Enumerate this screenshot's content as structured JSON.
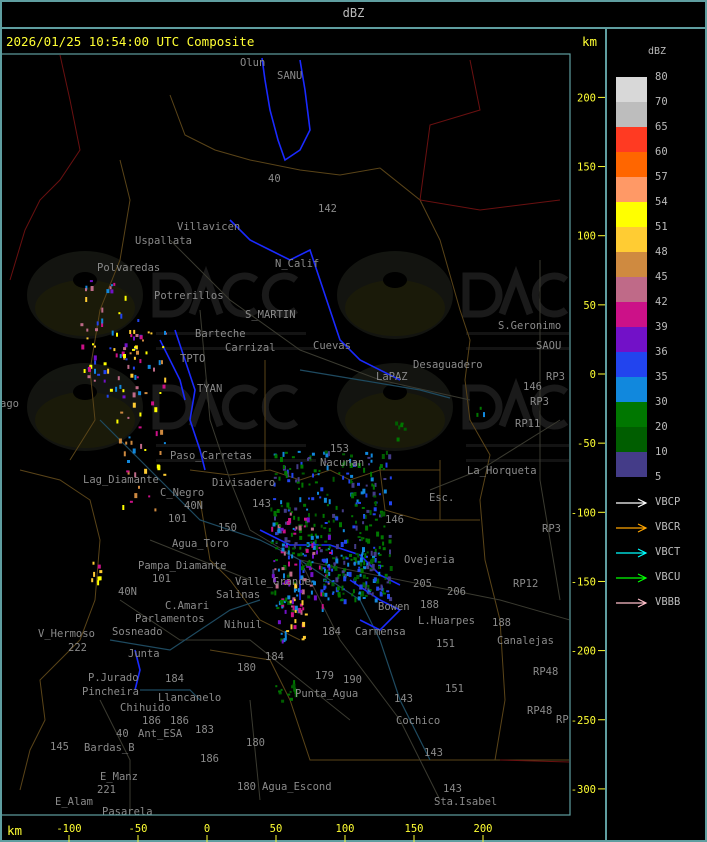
{
  "header": {
    "title": "dBZ"
  },
  "plot": {
    "title": "2026/01/25 10:54:00 UTC Composite",
    "y_unit": "km",
    "x_unit": "km",
    "x_ticks": [
      "-100",
      "-50",
      "0",
      "50",
      "100",
      "150",
      "200"
    ],
    "y_ticks": [
      "200",
      "150",
      "100",
      "50",
      "0",
      "-50",
      "-100",
      "-150",
      "-200",
      "-250",
      "-300"
    ]
  },
  "watermark": {
    "logo": "DACC",
    "line1": "Dirección de Agricultura",
    "line2": "y Contingencias Climáticas",
    "url": "http://www.contingencias.mendoza.gov.ar"
  },
  "places": [
    "Olun",
    "SANU",
    "40",
    "142",
    "Villavicen",
    "Uspallata",
    "Polvaredas",
    "N_Calif",
    "Potrerillos",
    "S_MARTIN",
    "Barteche",
    "Carrizal",
    "Cuevas",
    "TPTO",
    "TYAN",
    "Desaguadero",
    "LaPAZ",
    "S.Geronimo",
    "SAOU",
    "146",
    "RP3",
    "RP3",
    "RP11",
    "ago",
    "Paso_Carretas",
    "Lag_Diamante",
    "C_Negro",
    "Divisadero",
    "153",
    "Nacunan",
    "La_Horqueta",
    "Esc.",
    "143",
    "146",
    "101",
    "150",
    "40N",
    "Agua_Toro",
    "Pampa_Diamante",
    "101",
    "40N",
    "Salinas",
    "Valle_Grande",
    "C.Amari",
    "Parlamentos",
    "Sosneado",
    "Nihuil",
    "Ovejeria",
    "205",
    "206",
    "L.Huarpes",
    "188",
    "Carmensa",
    "Bowen",
    "184",
    "151",
    "188",
    "Canalejas",
    "RP12",
    "RP3",
    "V_Hermoso",
    "222",
    "Junta",
    "P.Jurado",
    "Pincheira",
    "184",
    "180",
    "184",
    "179",
    "190",
    "Punta_Agua",
    "Llancanelo",
    "Chihuido",
    "186",
    "186",
    "Ant_ESA",
    "183",
    "40",
    "145",
    "Bardas_B",
    "180",
    "143",
    "151",
    "RP48",
    "RP48",
    "RP",
    "Cochico",
    "186",
    "143",
    "E_Manz",
    "221",
    "E_Alam",
    "Pasarela",
    "180",
    "Agua_Escond",
    "143",
    "Sta.Isabel"
  ],
  "legend": {
    "unit": "dBZ",
    "labels": [
      "80",
      "70",
      "65",
      "60",
      "57",
      "54",
      "51",
      "48",
      "45",
      "42",
      "39",
      "36",
      "35",
      "30",
      "20",
      "10",
      "5"
    ],
    "colors": [
      "#d8d8d8",
      "#bdbdbd",
      "#ff3a22",
      "#ff6600",
      "#ff9966",
      "#ffff00",
      "#ffcc33",
      "#cf8a40",
      "#bf6a88",
      "#cc1188",
      "#7211c8",
      "#2244ee",
      "#1188dd",
      "#007700",
      "#005e00",
      "#443c88"
    ],
    "radars": [
      {
        "name": "VBCP",
        "color": "#ffffff"
      },
      {
        "name": "VBCR",
        "color": "#ffa500"
      },
      {
        "name": "VBCT",
        "color": "#00ffff"
      },
      {
        "name": "VBCU",
        "color": "#00ff00"
      },
      {
        "name": "VBBB",
        "color": "#ffc0cb"
      }
    ]
  }
}
